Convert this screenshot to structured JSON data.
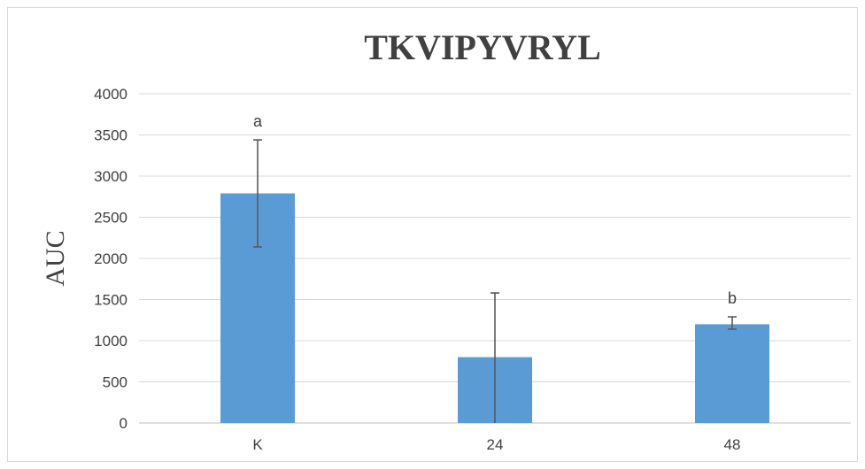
{
  "chart_data": {
    "type": "bar",
    "title": "TKVIPYVRYL",
    "xlabel": "",
    "ylabel": "AUC",
    "ylim": [
      0,
      4000
    ],
    "yticks": [
      0,
      500,
      1000,
      1500,
      2000,
      2500,
      3000,
      3500,
      4000
    ],
    "categories": [
      "K",
      "24",
      "48"
    ],
    "values": [
      2790,
      800,
      1200
    ],
    "error_plus": [
      650,
      780,
      90
    ],
    "error_minus": [
      650,
      800,
      60
    ],
    "significance_labels": [
      "a",
      "",
      "b"
    ],
    "bar_color": "#5b9bd5",
    "grid": true,
    "legend": "none"
  }
}
